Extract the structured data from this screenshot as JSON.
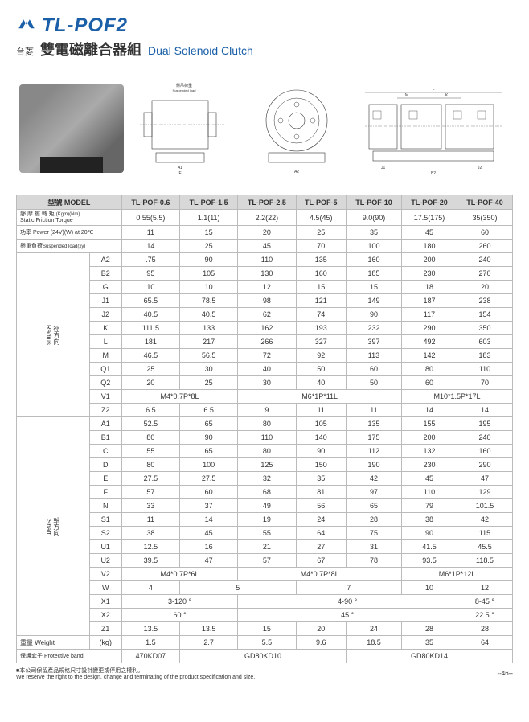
{
  "header": {
    "model": "TL-POF2",
    "brand_cn": "台菱",
    "name_cn": "雙電磁離合器組",
    "name_en": "Dual Solenoid Clutch"
  },
  "diagram_label": "懸吊荷重\nSuspended load",
  "table": {
    "model_label": "型號 MODEL",
    "models": [
      "TL-POF-0.6",
      "TL-POF-1.5",
      "TL-POF-2.5",
      "TL-POF-5",
      "TL-POF-10",
      "TL-POF-20",
      "TL-POF-40"
    ],
    "torque": {
      "label_cn": "靜 摩 擦 轉 矩",
      "label_en": "Static Friction Torque",
      "unit": "(Kgm)(Nm)",
      "vals": [
        "0.55(5.5)",
        "1.1(11)",
        "2.2(22)",
        "4.5(45)",
        "9.0(90)",
        "17.5(175)",
        "35(350)"
      ]
    },
    "power": {
      "label": "功率 Power (24V)(W) at 20℃",
      "vals": [
        "11",
        "15",
        "20",
        "25",
        "35",
        "45",
        "60"
      ]
    },
    "suspended": {
      "label_cn": "懸重負荷",
      "label_en": "Suspended load(xy)",
      "vals": [
        "14",
        "25",
        "45",
        "70",
        "100",
        "180",
        "260"
      ]
    },
    "radius_label_cn": "徑方向",
    "radius_label_en": "Radius",
    "shaft_label_cn": "軸方向",
    "shaft_label_en": "Shaft",
    "radius_rows": [
      {
        "k": "A2",
        "v": [
          ".75",
          "90",
          "110",
          "135",
          "160",
          "200",
          "240"
        ]
      },
      {
        "k": "B2",
        "v": [
          "95",
          "105",
          "130",
          "160",
          "185",
          "230",
          "270"
        ]
      },
      {
        "k": "G",
        "v": [
          "10",
          "10",
          "12",
          "15",
          "15",
          "18",
          "20"
        ]
      },
      {
        "k": "J1",
        "v": [
          "65.5",
          "78.5",
          "98",
          "121",
          "149",
          "187",
          "238"
        ]
      },
      {
        "k": "J2",
        "v": [
          "40.5",
          "40.5",
          "62",
          "74",
          "90",
          "117",
          "154"
        ]
      },
      {
        "k": "K",
        "v": [
          "111.5",
          "133",
          "162",
          "193",
          "232",
          "290",
          "350"
        ]
      },
      {
        "k": "L",
        "v": [
          "181",
          "217",
          "266",
          "327",
          "397",
          "492",
          "603"
        ]
      },
      {
        "k": "M",
        "v": [
          "46.5",
          "56.5",
          "72",
          "92",
          "113",
          "142",
          "183"
        ]
      },
      {
        "k": "Q1",
        "v": [
          "25",
          "30",
          "40",
          "50",
          "60",
          "80",
          "110"
        ]
      },
      {
        "k": "Q2",
        "v": [
          "20",
          "25",
          "30",
          "40",
          "50",
          "60",
          "70"
        ]
      }
    ],
    "v1": {
      "k": "V1",
      "spans": [
        {
          "c": 2,
          "v": "M4*0.7P*8L"
        },
        {
          "c": 3,
          "v": "M6*1P*11L"
        },
        {
          "c": 2,
          "v": "M10*1.5P*17L"
        }
      ]
    },
    "z2": {
      "k": "Z2",
      "v": [
        "6.5",
        "6.5",
        "9",
        "11",
        "11",
        "14",
        "14"
      ]
    },
    "shaft_rows": [
      {
        "k": "A1",
        "v": [
          "52.5",
          "65",
          "80",
          "105",
          "135",
          "155",
          "195"
        ]
      },
      {
        "k": "B1",
        "v": [
          "80",
          "90",
          "110",
          "140",
          "175",
          "200",
          "240"
        ]
      },
      {
        "k": "C",
        "v": [
          "55",
          "65",
          "80",
          "90",
          "112",
          "132",
          "160"
        ]
      },
      {
        "k": "D",
        "v": [
          "80",
          "100",
          "125",
          "150",
          "190",
          "230",
          "290"
        ]
      },
      {
        "k": "E",
        "v": [
          "27.5",
          "27.5",
          "32",
          "35",
          "42",
          "45",
          "47"
        ]
      },
      {
        "k": "F",
        "v": [
          "57",
          "60",
          "68",
          "81",
          "97",
          "110",
          "129"
        ]
      },
      {
        "k": "N",
        "v": [
          "33",
          "37",
          "49",
          "56",
          "65",
          "79",
          "101.5"
        ]
      },
      {
        "k": "S1",
        "v": [
          "11",
          "14",
          "19",
          "24",
          "28",
          "38",
          "42"
        ]
      },
      {
        "k": "S2",
        "v": [
          "38",
          "45",
          "55",
          "64",
          "75",
          "90",
          "115"
        ]
      },
      {
        "k": "U1",
        "v": [
          "12.5",
          "16",
          "21",
          "27",
          "31",
          "41.5",
          "45.5"
        ]
      },
      {
        "k": "U2",
        "v": [
          "39.5",
          "47",
          "57",
          "67",
          "78",
          "93.5",
          "118.5"
        ]
      }
    ],
    "v2": {
      "k": "V2",
      "spans": [
        {
          "c": 2,
          "v": "M4*0.7P*6L"
        },
        {
          "c": 3,
          "v": "M4*0.7P*8L"
        },
        {
          "c": 2,
          "v": "M6*1P*12L"
        }
      ]
    },
    "w": {
      "k": "W",
      "spans": [
        {
          "c": 1,
          "v": "4"
        },
        {
          "c": 2,
          "v": "5"
        },
        {
          "c": 2,
          "v": "7"
        },
        {
          "c": 1,
          "v": "10"
        },
        {
          "c": 1,
          "v": "12"
        }
      ]
    },
    "x1": {
      "k": "X1",
      "spans": [
        {
          "c": 2,
          "v": "3-120 °"
        },
        {
          "c": 4,
          "v": "4-90 °"
        },
        {
          "c": 1,
          "v": "8-45 °"
        }
      ]
    },
    "x2": {
      "k": "X2",
      "spans": [
        {
          "c": 2,
          "v": "60 °"
        },
        {
          "c": 4,
          "v": "45 °"
        },
        {
          "c": 1,
          "v": "22.5 °"
        }
      ]
    },
    "z1": {
      "k": "Z1",
      "v": [
        "13.5",
        "13.5",
        "15",
        "20",
        "24",
        "28",
        "28"
      ]
    },
    "weight": {
      "label_cn": "重量 Weight",
      "unit": "(kg)",
      "v": [
        "1.5",
        "2.7",
        "5.5",
        "9.6",
        "18.5",
        "35",
        "64"
      ]
    },
    "protective": {
      "label_cn": "保護套子",
      "label_en": "Protective band",
      "spans": [
        {
          "c": 1,
          "v": "470KD07"
        },
        {
          "c": 3,
          "v": "GD80KD10"
        },
        {
          "c": 3,
          "v": "GD80KD14"
        }
      ]
    }
  },
  "footer": {
    "note_cn": "■本公司保留產品規格尺寸設計變更或停用之權利。",
    "note_en": "We reserve the right to the design, change and terminating of the product specification and size.",
    "page": "--46--"
  }
}
